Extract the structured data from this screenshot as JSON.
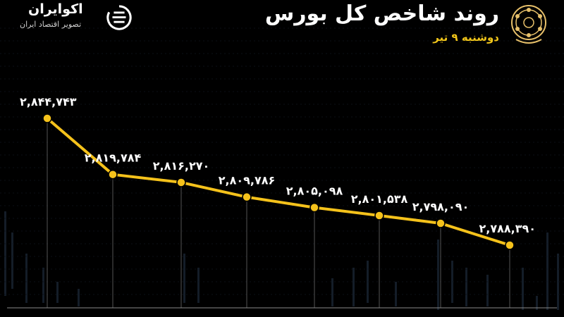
{
  "header": {
    "title": "روند شاخص کل بورس",
    "date": "دوشنبه ۹ تیر"
  },
  "brand": {
    "name": "اکوایران",
    "tagline": "تصویر اقتصاد ایران"
  },
  "colors": {
    "background": "#000000",
    "line": "#f5c21b",
    "point": "#f5c21b",
    "label": "#ffffff",
    "accent": "#f0c51a",
    "guide": "#555555"
  },
  "icons": [
    "stock-exchange-emblem-icon",
    "ecoiran-logo-icon"
  ],
  "chart_data": {
    "type": "line",
    "title": "روند شاخص کل بورس",
    "subtitle": "دوشنبه ۹ تیر",
    "xlabel": "",
    "ylabel": "",
    "x": [
      1,
      2,
      3,
      4,
      5,
      6,
      7,
      8
    ],
    "values": [
      2844743,
      2819784,
      2816270,
      2809786,
      2805098,
      2801538,
      2798090,
      2788390
    ],
    "data_labels": [
      "۲,۸۴۴,۷۴۳",
      "۲,۸۱۹,۷۸۴",
      "۲,۸۱۶,۲۷۰",
      "۲,۸۰۹,۷۸۶",
      "۲,۸۰۵,۰۹۸",
      "۲,۸۰۱,۵۳۸",
      "۲,۷۹۸,۰۹۰",
      "۲,۷۸۸,۳۹۰"
    ],
    "grid": false,
    "legend": "none"
  }
}
